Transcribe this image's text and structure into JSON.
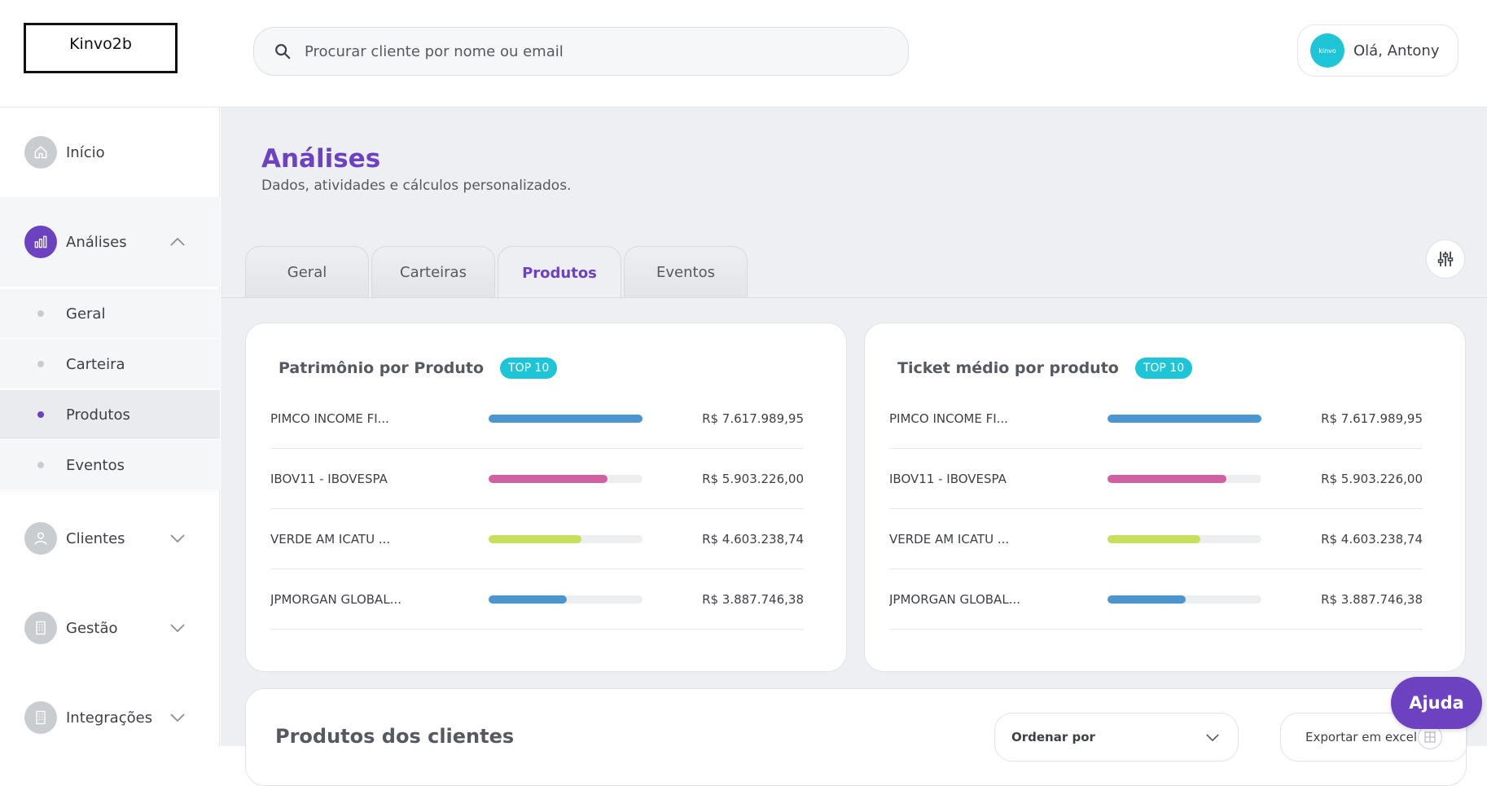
{
  "header": {
    "logo_text": "Kinvo2b",
    "search_placeholder": "Procurar cliente por nome ou email",
    "avatar_text": "kinvo",
    "greeting": "Olá, Antony"
  },
  "sidebar": {
    "items": [
      {
        "label": "Início",
        "icon": "home-icon"
      },
      {
        "label": "Análises",
        "icon": "chart-icon"
      },
      {
        "label": "Clientes",
        "icon": "user-icon"
      },
      {
        "label": "Gestão",
        "icon": "building-icon"
      },
      {
        "label": "Integrações",
        "icon": "building-icon"
      }
    ],
    "subitems": [
      {
        "label": "Geral"
      },
      {
        "label": "Carteira"
      },
      {
        "label": "Produtos"
      },
      {
        "label": "Eventos"
      }
    ]
  },
  "page": {
    "title": "Análises",
    "subtitle": "Dados, atividades e cálculos personalizados."
  },
  "tabs": [
    {
      "label": "Geral"
    },
    {
      "label": "Carteiras"
    },
    {
      "label": "Produtos"
    },
    {
      "label": "Eventos"
    }
  ],
  "colors": {
    "accent": "#6c42c1",
    "badge": "#1ec5d6",
    "bar_blue": "#4b96d1",
    "bar_pink": "#d0609f",
    "bar_lime": "#c7e05a"
  },
  "cards": [
    {
      "title": "Patrimônio por Produto",
      "badge": "TOP 10",
      "rows": [
        {
          "name": "PIMCO INCOME FI...",
          "value": "R$ 7.617.989,95",
          "fraction": 1.0,
          "color": "#4b96d1"
        },
        {
          "name": "IBOV11 - IBOVESPA",
          "value": "R$ 5.903.226,00",
          "fraction": 0.775,
          "color": "#d0609f"
        },
        {
          "name": "VERDE AM ICATU ...",
          "value": "R$ 4.603.238,74",
          "fraction": 0.604,
          "color": "#c7e05a"
        },
        {
          "name": "JPMORGAN GLOBAL...",
          "value": "R$ 3.887.746,38",
          "fraction": 0.51,
          "color": "#4b96d1"
        }
      ]
    },
    {
      "title": "Ticket médio por produto",
      "badge": "TOP 10",
      "rows": [
        {
          "name": "PIMCO INCOME FI...",
          "value": "R$ 7.617.989,95",
          "fraction": 1.0,
          "color": "#4b96d1"
        },
        {
          "name": "IBOV11 - IBOVESPA",
          "value": "R$ 5.903.226,00",
          "fraction": 0.775,
          "color": "#d0609f"
        },
        {
          "name": "VERDE AM ICATU ...",
          "value": "R$ 4.603.238,74",
          "fraction": 0.604,
          "color": "#c7e05a"
        },
        {
          "name": "JPMORGAN GLOBAL...",
          "value": "R$ 3.887.746,38",
          "fraction": 0.51,
          "color": "#4b96d1"
        }
      ]
    }
  ],
  "products_section": {
    "title": "Produtos dos clientes",
    "order_label": "Ordenar por",
    "export_label": "Exportar em excel"
  },
  "help_label": "Ajuda"
}
